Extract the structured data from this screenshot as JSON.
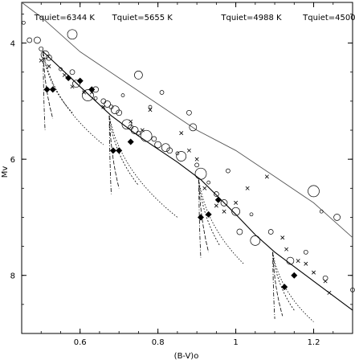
{
  "chart_data": {
    "type": "scatter",
    "title": "",
    "xlabel": "(B-V)o",
    "ylabel": "Mv",
    "xlim": [
      0.45,
      1.3
    ],
    "ylim": [
      9.0,
      3.3
    ],
    "y_inverted": true,
    "x_ticks": [
      0.6,
      0.8,
      1.0,
      1.2
    ],
    "x_tick_labels": [
      "0.6",
      "0.8",
      "1",
      "1.2"
    ],
    "y_ticks": [
      4,
      6,
      8
    ],
    "y_tick_labels": [
      "4",
      "6",
      "8"
    ],
    "grid": false,
    "legend": "none",
    "annotations": [
      {
        "text": "Tquiet=6344 K",
        "x": 0.56,
        "y": 3.55
      },
      {
        "text": "Tquiet=5655 K",
        "x": 0.76,
        "y": 3.55
      },
      {
        "text": "Tquiet=4988 K",
        "x": 1.04,
        "y": 3.55
      },
      {
        "text": "Tquiet=4500 K",
        "x": 1.25,
        "y": 3.55
      }
    ],
    "series": [
      {
        "style": "solid-line-thin-gray",
        "points": [
          [
            0.45,
            3.15
          ],
          [
            0.5,
            3.55
          ],
          [
            0.6,
            4.15
          ],
          [
            0.7,
            4.6
          ],
          [
            0.8,
            5.05
          ],
          [
            0.9,
            5.5
          ],
          [
            1.0,
            5.85
          ],
          [
            1.1,
            6.3
          ],
          [
            1.2,
            6.75
          ],
          [
            1.3,
            7.35
          ]
        ]
      },
      {
        "style": "solid-line-black",
        "points": [
          [
            0.505,
            4.15
          ],
          [
            0.6,
            4.75
          ],
          [
            0.68,
            5.25
          ],
          [
            0.75,
            5.6
          ],
          [
            0.85,
            6.05
          ],
          [
            0.91,
            6.35
          ],
          [
            1.0,
            6.95
          ],
          [
            1.05,
            7.3
          ],
          [
            1.1,
            7.6
          ],
          [
            1.2,
            8.1
          ],
          [
            1.3,
            8.6
          ]
        ]
      },
      {
        "style": "open-circles",
        "points": [
          [
            0.455,
            3.65
          ],
          [
            0.47,
            3.95
          ],
          [
            0.49,
            3.95
          ],
          [
            0.5,
            4.1
          ],
          [
            0.51,
            4.2
          ],
          [
            0.52,
            4.25
          ],
          [
            0.55,
            4.45
          ],
          [
            0.58,
            3.85
          ],
          [
            0.58,
            4.5
          ],
          [
            0.59,
            4.7
          ],
          [
            0.6,
            4.65
          ],
          [
            0.62,
            4.9
          ],
          [
            0.64,
            4.95
          ],
          [
            0.66,
            5.0
          ],
          [
            0.67,
            5.05
          ],
          [
            0.68,
            5.1
          ],
          [
            0.69,
            5.15
          ],
          [
            0.7,
            5.2
          ],
          [
            0.71,
            4.9
          ],
          [
            0.72,
            5.4
          ],
          [
            0.73,
            5.45
          ],
          [
            0.74,
            5.5
          ],
          [
            0.75,
            5.55
          ],
          [
            0.77,
            5.6
          ],
          [
            0.78,
            5.1
          ],
          [
            0.79,
            5.65
          ],
          [
            0.8,
            5.75
          ],
          [
            0.81,
            4.85
          ],
          [
            0.82,
            5.8
          ],
          [
            0.83,
            5.85
          ],
          [
            0.85,
            5.9
          ],
          [
            0.86,
            5.95
          ],
          [
            0.88,
            5.2
          ],
          [
            0.89,
            5.45
          ],
          [
            0.9,
            6.1
          ],
          [
            0.91,
            6.25
          ],
          [
            0.93,
            6.4
          ],
          [
            0.95,
            6.6
          ],
          [
            0.97,
            6.75
          ],
          [
            0.98,
            6.2
          ],
          [
            1.0,
            6.9
          ],
          [
            1.01,
            7.25
          ],
          [
            1.04,
            6.95
          ],
          [
            1.05,
            7.4
          ],
          [
            1.09,
            7.25
          ],
          [
            1.14,
            7.75
          ],
          [
            1.18,
            7.6
          ],
          [
            1.2,
            6.55
          ],
          [
            1.22,
            6.9
          ],
          [
            1.23,
            8.05
          ],
          [
            1.26,
            7.0
          ],
          [
            1.3,
            8.25
          ],
          [
            0.75,
            4.55
          ],
          [
            0.64,
            4.8
          ]
        ]
      },
      {
        "style": "crosses",
        "points": [
          [
            0.5,
            4.3
          ],
          [
            0.52,
            4.4
          ],
          [
            0.56,
            4.55
          ],
          [
            0.58,
            4.75
          ],
          [
            0.63,
            4.85
          ],
          [
            0.66,
            5.1
          ],
          [
            0.73,
            5.35
          ],
          [
            0.76,
            5.5
          ],
          [
            0.78,
            5.15
          ],
          [
            0.86,
            5.55
          ],
          [
            0.88,
            5.85
          ],
          [
            0.9,
            6.0
          ],
          [
            0.92,
            6.5
          ],
          [
            0.95,
            6.8
          ],
          [
            0.97,
            6.9
          ],
          [
            1.0,
            6.75
          ],
          [
            1.03,
            6.5
          ],
          [
            1.08,
            6.3
          ],
          [
            1.12,
            7.35
          ],
          [
            1.13,
            7.55
          ],
          [
            1.16,
            7.75
          ],
          [
            1.18,
            7.8
          ],
          [
            1.2,
            7.95
          ],
          [
            1.23,
            8.1
          ],
          [
            1.24,
            8.3
          ],
          [
            0.61,
            4.85
          ]
        ]
      },
      {
        "style": "filled-diamonds",
        "points": [
          [
            0.515,
            4.8
          ],
          [
            0.53,
            4.8
          ],
          [
            0.57,
            4.6
          ],
          [
            0.6,
            4.65
          ],
          [
            0.63,
            4.8
          ],
          [
            0.685,
            5.85
          ],
          [
            0.7,
            5.85
          ],
          [
            0.73,
            5.7
          ],
          [
            0.91,
            7.0
          ],
          [
            0.93,
            6.95
          ],
          [
            0.955,
            6.7
          ],
          [
            1.125,
            8.2
          ],
          [
            1.15,
            8.0
          ]
        ]
      }
    ],
    "tracks": [
      {
        "start": [
          0.505,
          4.15
        ],
        "ends": [
          [
            0.51,
            5.5
          ],
          [
            0.53,
            5.3
          ],
          [
            0.58,
            5.2
          ],
          [
            0.66,
            5.75
          ]
        ]
      },
      {
        "start": [
          0.675,
          5.25
        ],
        "ends": [
          [
            0.68,
            6.6
          ],
          [
            0.7,
            6.5
          ],
          [
            0.75,
            6.45
          ],
          [
            0.85,
            7.0
          ]
        ]
      },
      {
        "start": [
          0.905,
          6.35
        ],
        "ends": [
          [
            0.91,
            7.7
          ],
          [
            0.93,
            7.6
          ],
          [
            0.96,
            7.5
          ],
          [
            1.02,
            7.8
          ]
        ]
      },
      {
        "start": [
          1.095,
          7.6
        ],
        "ends": [
          [
            1.1,
            8.75
          ],
          [
            1.12,
            8.7
          ],
          [
            1.15,
            8.6
          ],
          [
            1.2,
            8.8
          ]
        ]
      }
    ]
  }
}
